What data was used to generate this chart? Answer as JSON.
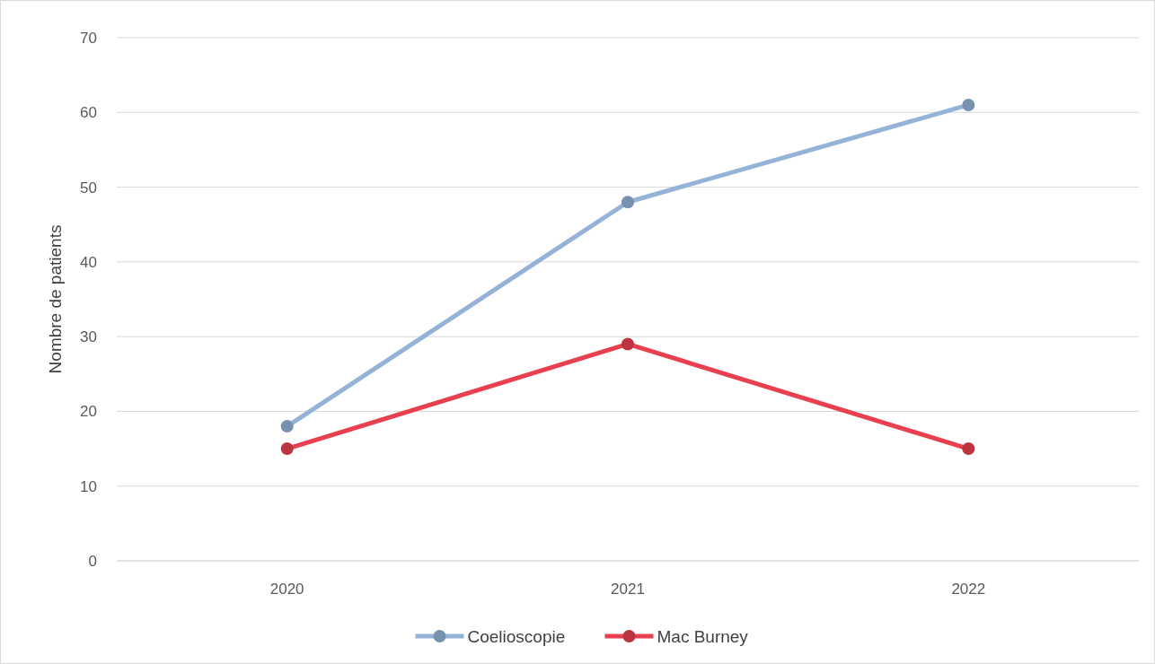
{
  "chart_data": {
    "type": "line",
    "ylabel": "Nombre de patients",
    "categories": [
      "2020",
      "2021",
      "2022"
    ],
    "series": [
      {
        "name": "Coelioscopie",
        "color": "#95b3d7",
        "values": [
          18,
          48,
          61
        ]
      },
      {
        "name": "Mac Burney",
        "color": "#e8404f",
        "values": [
          15,
          29,
          15
        ]
      }
    ],
    "ylim": [
      0,
      70
    ],
    "yticks": [
      0,
      10,
      20,
      30,
      40,
      50,
      60,
      70
    ],
    "grid": "y",
    "legend": "bottom",
    "marker": "circle"
  }
}
